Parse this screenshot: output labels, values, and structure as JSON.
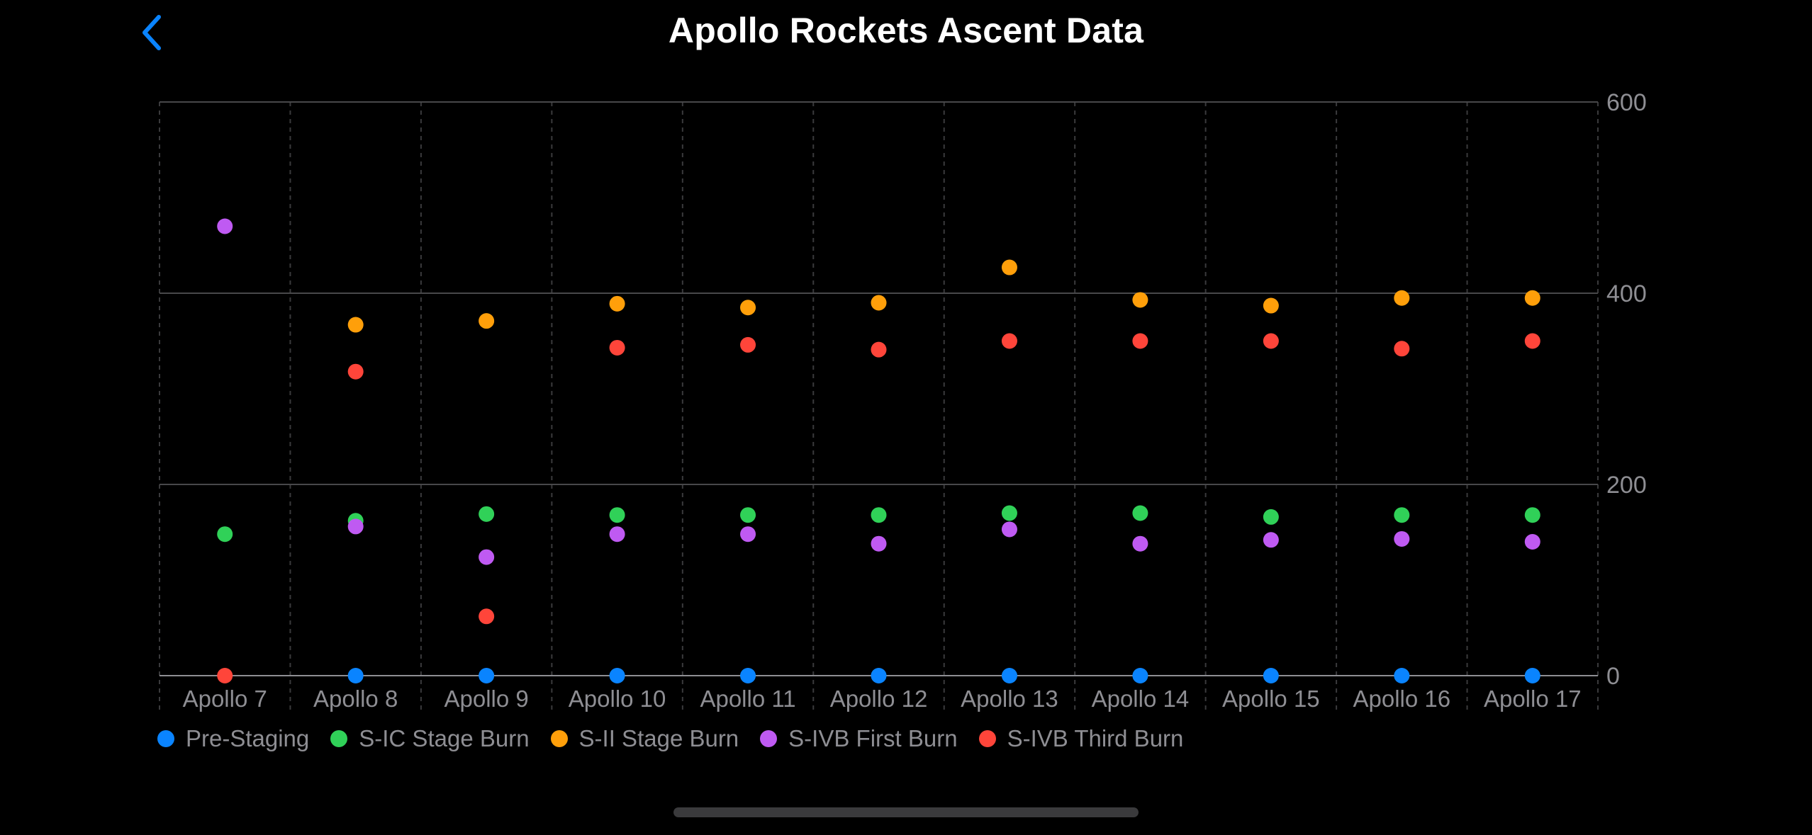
{
  "header": {
    "title": "Apollo Rockets Ascent Data",
    "back_icon": "chevron-left-icon"
  },
  "colors": {
    "accent": "#0a84ff",
    "background": "#000000"
  },
  "chart_data": {
    "type": "scatter",
    "title": "Apollo Rockets Ascent Data",
    "xlabel": "",
    "ylabel": "",
    "categories": [
      "Apollo 7",
      "Apollo 8",
      "Apollo 9",
      "Apollo 10",
      "Apollo 11",
      "Apollo 12",
      "Apollo 13",
      "Apollo 14",
      "Apollo 15",
      "Apollo 16",
      "Apollo 17"
    ],
    "ylim": [
      0,
      600
    ],
    "yticks": [
      0,
      200,
      400,
      600
    ],
    "y_axis_position": "right",
    "grid": true,
    "legend_position": "bottom-left",
    "series": [
      {
        "name": "Pre-Staging",
        "color": "#0a84ff",
        "values": [
          null,
          0,
          0,
          0,
          0,
          0,
          0,
          0,
          0,
          0,
          0
        ]
      },
      {
        "name": "S-IC Stage Burn",
        "color": "#30d158",
        "values": [
          148,
          162,
          169,
          168,
          168,
          168,
          170,
          170,
          166,
          168,
          168
        ]
      },
      {
        "name": "S-II Stage Burn",
        "color": "#ff9f0a",
        "values": [
          null,
          367,
          371,
          389,
          385,
          390,
          427,
          393,
          387,
          395,
          395
        ]
      },
      {
        "name": "S-IVB First Burn",
        "color": "#bf5af2",
        "values": [
          470,
          156,
          124,
          148,
          148,
          138,
          153,
          138,
          142,
          143,
          140
        ]
      },
      {
        "name": "S-IVB Third Burn",
        "color": "#ff453a",
        "values": [
          0,
          318,
          62,
          343,
          346,
          341,
          350,
          350,
          350,
          342,
          350
        ]
      }
    ]
  }
}
